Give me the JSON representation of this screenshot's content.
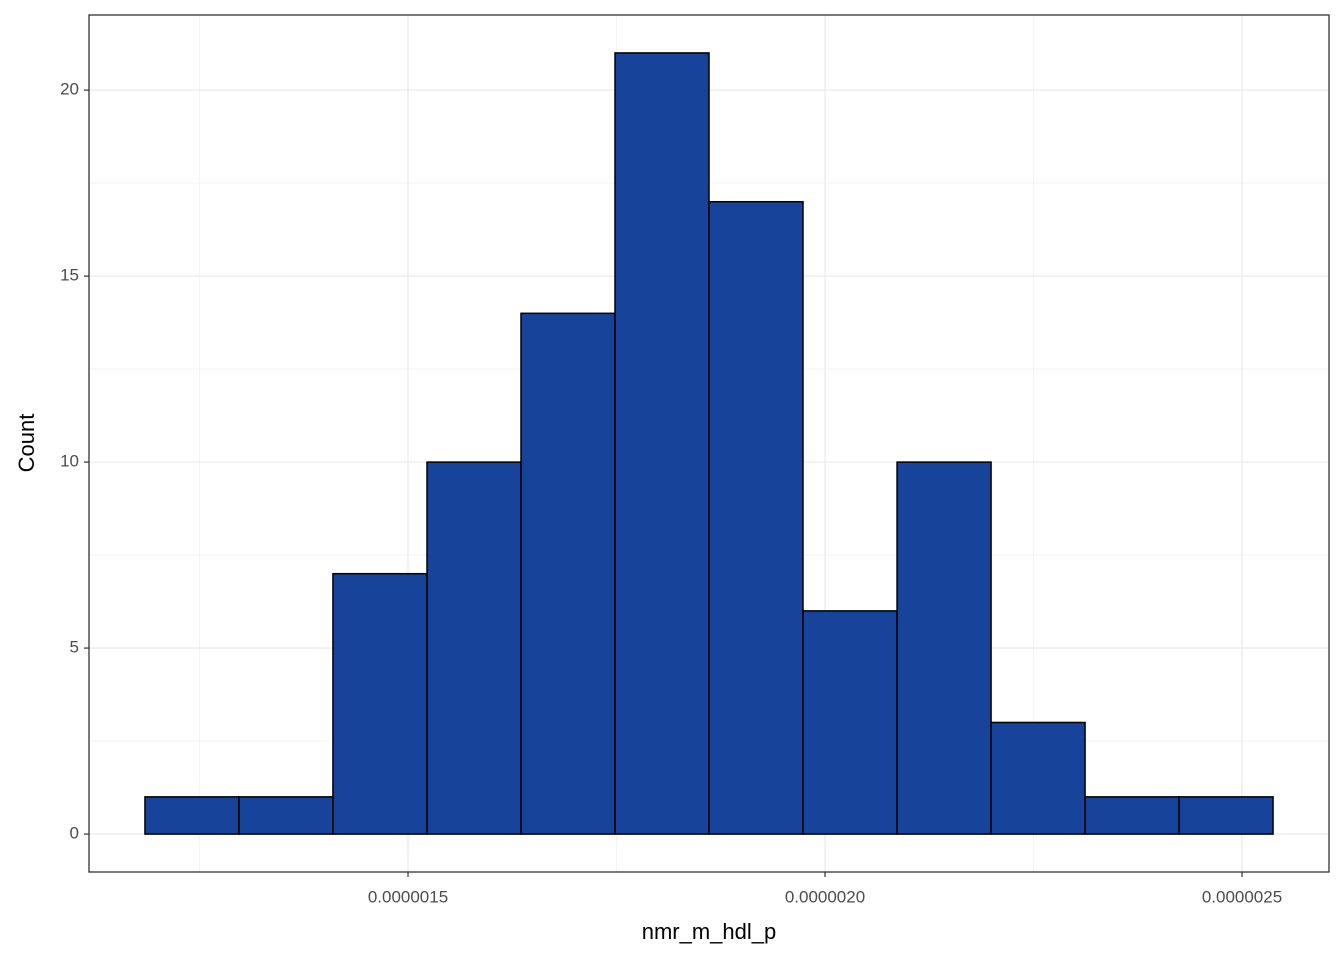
{
  "chart_data": {
    "type": "histogram",
    "x_label": "nmr_m_hdl_p",
    "y_label": "Count",
    "bins": [
      1.1846e-06,
      1.2973e-06,
      1.41e-06,
      1.5228e-06,
      1.6355e-06,
      1.7482e-06,
      1.8609e-06,
      1.9736e-06,
      2.0864e-06,
      2.1991e-06,
      2.3118e-06,
      2.4245e-06,
      2.5372e-06
    ],
    "values": [
      1,
      1,
      7,
      10,
      14,
      21,
      17,
      6,
      10,
      3,
      1,
      1
    ],
    "color": "#18439a",
    "xlim": [
      1.1175e-06,
      2.6043e-06
    ],
    "xticks": [
      {
        "value": 1.5e-06,
        "label": "0.0000015"
      },
      {
        "value": 2e-06,
        "label": "0.0000020"
      },
      {
        "value": 2.5e-06,
        "label": "0.0000025"
      }
    ],
    "ylim": [
      -1.02,
      22.02
    ],
    "yticks": [
      0,
      5,
      10,
      15,
      20
    ],
    "grid": true
  }
}
